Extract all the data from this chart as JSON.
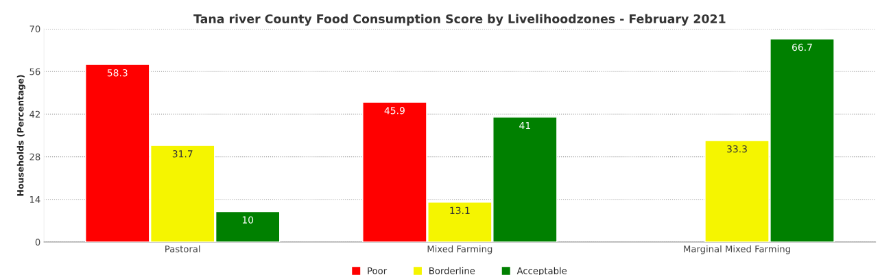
{
  "chart_data": {
    "type": "bar",
    "title": "Tana river County Food Consumption Score by Livelihoodzones - February 2021",
    "ylabel": "Households (Percentage)",
    "categories": [
      "Pastoral",
      "Mixed Farming",
      "Marginal Mixed Farming"
    ],
    "series": [
      {
        "name": "Poor",
        "color": "#ff0000",
        "values": [
          58.3,
          45.9,
          null
        ]
      },
      {
        "name": "Borderline",
        "color": "#f5f500",
        "values": [
          31.7,
          13.1,
          33.3
        ]
      },
      {
        "name": "Acceptable",
        "color": "#008000",
        "values": [
          10,
          41,
          66.7
        ]
      }
    ],
    "ylim": [
      0,
      70
    ],
    "yticks": [
      0,
      14,
      28,
      42,
      56,
      70
    ],
    "grid": "y",
    "legend": "bottom",
    "data_labels": true
  }
}
